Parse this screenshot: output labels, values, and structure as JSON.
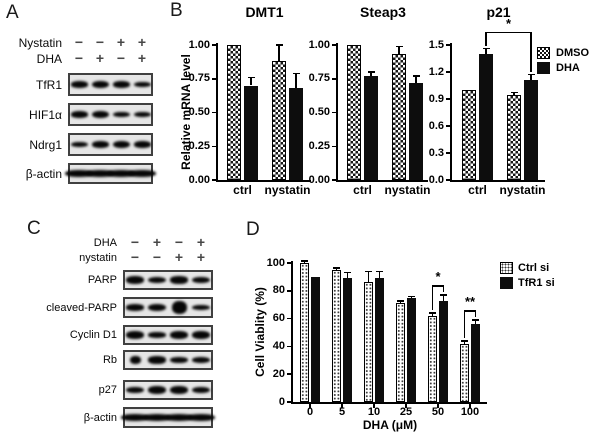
{
  "colors": {
    "ink": "#000000",
    "solid_bar": "#0d0d0d",
    "blot_background": "#e6e6e6",
    "sign_gray": "#474747"
  },
  "panels": {
    "a": {
      "label": "A",
      "treatments": [
        {
          "label": "Nystatin",
          "signs": [
            "−",
            "−",
            "+",
            "+"
          ]
        },
        {
          "label": "DHA",
          "signs": [
            "−",
            "+",
            "−",
            "+"
          ]
        }
      ],
      "blots": [
        {
          "label": "TfR1",
          "bands": [
            0.45,
            0.95,
            0.55,
            0.3
          ]
        },
        {
          "label": "HIF1α",
          "bands": [
            0.5,
            0.95,
            0.3,
            0.25
          ]
        },
        {
          "label": "Ndrg1",
          "bands": [
            0.25,
            0.65,
            0.95,
            0.55
          ]
        },
        {
          "label": "β-actin",
          "bands": [
            1,
            1,
            1,
            1
          ],
          "merged": true
        }
      ]
    },
    "b": {
      "label": "B"
    },
    "c": {
      "label": "C",
      "treatments": [
        {
          "label": "DHA",
          "signs": [
            "−",
            "+",
            "−",
            "+"
          ]
        },
        {
          "label": "nystatin",
          "signs": [
            "−",
            "−",
            "+",
            "+"
          ]
        }
      ],
      "blots": [
        {
          "label": "PARP",
          "bands": [
            0.95,
            0.55,
            0.7,
            0.65
          ]
        },
        {
          "label": "cleaved-PARP",
          "bands": [
            0.4,
            0.75,
            0.95,
            0.12
          ]
        },
        {
          "label": "Cyclin D1",
          "bands": [
            0.85,
            0.18,
            0.8,
            0.9
          ]
        },
        {
          "label": "Rb",
          "bands": [
            0.9,
            0.7,
            0.35,
            0.4
          ]
        },
        {
          "label": "p27",
          "bands": [
            0.65,
            0.9,
            0.9,
            0.65
          ]
        },
        {
          "label": "β-actin",
          "bands": [
            1,
            1,
            1,
            1
          ],
          "merged": true
        }
      ]
    },
    "d": {
      "label": "D"
    }
  },
  "chart_data": [
    {
      "type": "bar",
      "title": "DMT1",
      "ylabel": "Relative mRNA level",
      "categories": [
        "ctrl",
        "nystatin"
      ],
      "series": [
        {
          "name": "DMSO",
          "pattern": "checker",
          "values": [
            1.0,
            0.88
          ],
          "errors": [
            0,
            0.12
          ]
        },
        {
          "name": "DHA",
          "pattern": "solid",
          "values": [
            0.7,
            0.68
          ],
          "errors": [
            0.06,
            0.11
          ]
        }
      ],
      "ylim": [
        0,
        1.0
      ],
      "yticks": [
        "0.00",
        "0.25",
        "0.50",
        "0.75",
        "1.00"
      ],
      "grid": false,
      "legend_position": "right-of-p21"
    },
    {
      "type": "bar",
      "title": "Steap3",
      "ylabel": "",
      "categories": [
        "ctrl",
        "nystatin"
      ],
      "series": [
        {
          "name": "DMSO",
          "pattern": "checker",
          "values": [
            1.0,
            0.93
          ],
          "errors": [
            0,
            0.06
          ]
        },
        {
          "name": "DHA",
          "pattern": "solid",
          "values": [
            0.77,
            0.72
          ],
          "errors": [
            0.03,
            0.05
          ]
        }
      ],
      "ylim": [
        0,
        1.0
      ],
      "yticks": [
        "0.00",
        "0.25",
        "0.50",
        "0.75",
        "1.00"
      ],
      "grid": false
    },
    {
      "type": "bar",
      "title": "p21",
      "ylabel": "",
      "categories": [
        "ctrl",
        "nystatin"
      ],
      "series": [
        {
          "name": "DMSO",
          "pattern": "checker",
          "values": [
            1.0,
            0.94
          ],
          "errors": [
            0,
            0.03
          ]
        },
        {
          "name": "DHA",
          "pattern": "solid",
          "values": [
            1.4,
            1.11
          ],
          "errors": [
            0.06,
            0.06
          ]
        }
      ],
      "ylim": [
        0,
        1.5
      ],
      "yticks": [
        "0.0",
        "0.3",
        "0.6",
        "0.9",
        "1.2",
        "1.5"
      ],
      "grid": false,
      "significance": [
        {
          "label": "*",
          "bars": [
            [
              0,
              1
            ],
            [
              1,
              1
            ]
          ],
          "y": 1.65
        }
      ]
    },
    {
      "type": "bar",
      "title": "",
      "ylabel": "Cell Viablity (%)",
      "xlabel": "DHA (μM)",
      "categories": [
        "0",
        "5",
        "10",
        "25",
        "50",
        "100"
      ],
      "series": [
        {
          "name": "Ctrl si",
          "pattern": "stipple",
          "values": [
            100,
            95,
            86,
            71,
            62,
            42
          ],
          "errors": [
            1.5,
            1.5,
            8,
            1.5,
            2,
            2
          ]
        },
        {
          "name": "TfR1 si",
          "pattern": "solid",
          "values": [
            90,
            89,
            89,
            75,
            73,
            56
          ],
          "errors": [
            0,
            4,
            5,
            1,
            4,
            3
          ]
        }
      ],
      "ylim": [
        0,
        100
      ],
      "yticks": [
        "0",
        "20",
        "40",
        "60",
        "80",
        "100"
      ],
      "grid": false,
      "significance": [
        {
          "label": "*",
          "bars": [
            [
              4,
              0
            ],
            [
              4,
              1
            ]
          ],
          "y": 84
        },
        {
          "label": "**",
          "bars": [
            [
              5,
              0
            ],
            [
              5,
              1
            ]
          ],
          "y": 66
        }
      ]
    }
  ]
}
